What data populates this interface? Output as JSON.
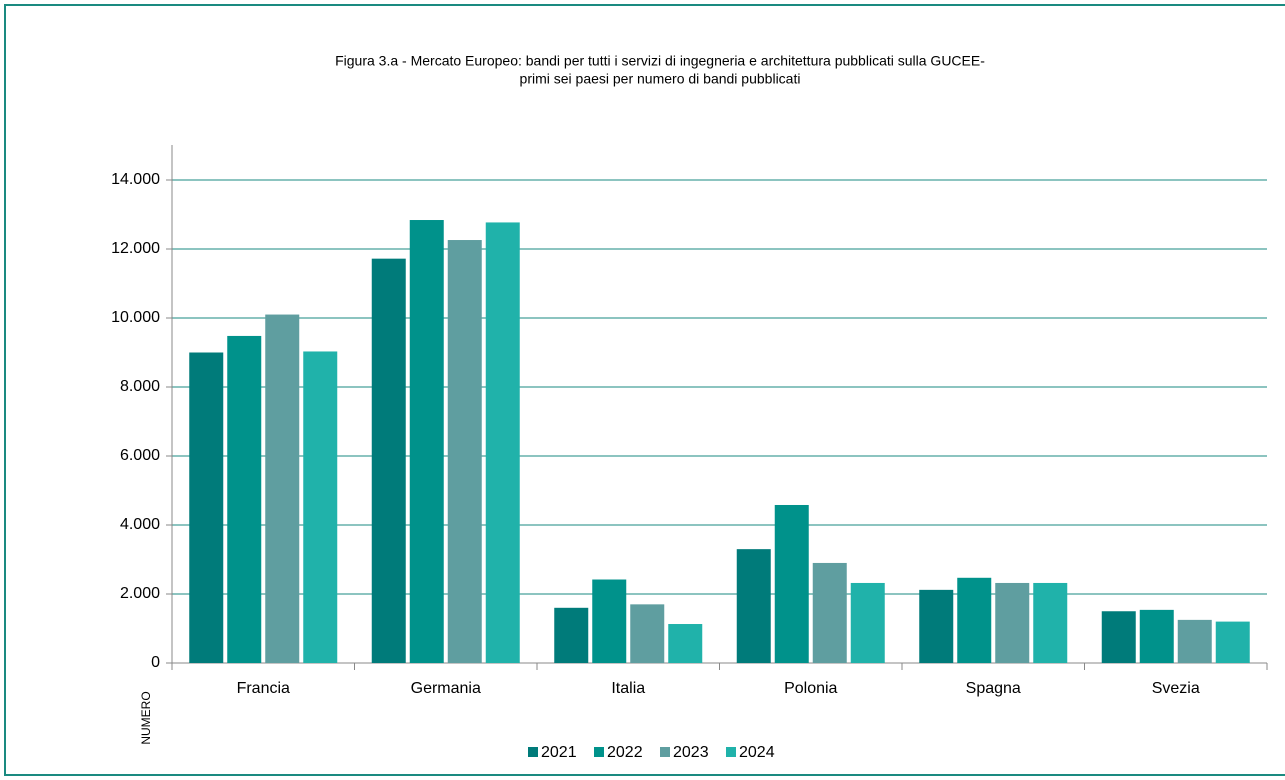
{
  "chart_data": {
    "type": "bar",
    "title": [
      "Figura 3.a - Mercato Europeo: bandi per tutti i servizi di ingegneria e architettura pubblicati sulla GUCEE-",
      "primi sei paesi per numero di bandi pubblicati"
    ],
    "y_label": "NUMERO",
    "categories": [
      "Francia",
      "Germania",
      "Italia",
      "Polonia",
      "Spagna",
      "Svezia"
    ],
    "series": [
      {
        "name": "2021",
        "color": "#007b7a",
        "values": [
          9000,
          11720,
          1600,
          3300,
          2120,
          1500
        ]
      },
      {
        "name": "2022",
        "color": "#00928b",
        "values": [
          9480,
          12840,
          2420,
          4580,
          2470,
          1540
        ]
      },
      {
        "name": "2023",
        "color": "#5f9ea0",
        "values": [
          10100,
          12260,
          1700,
          2900,
          2320,
          1250
        ]
      },
      {
        "name": "2024",
        "color": "#20b2aa",
        "values": [
          9030,
          12770,
          1130,
          2320,
          2320,
          1200
        ]
      }
    ],
    "ylim": [
      0,
      14000
    ],
    "yticks": [
      0,
      {
        "value": 2000,
        "label": "2.000"
      },
      {
        "value": 4000,
        "label": "4.000"
      },
      {
        "value": 6000,
        "label": "6.000"
      },
      {
        "value": 8000,
        "label": "8.000"
      },
      {
        "value": 10000,
        "label": "10.000"
      },
      {
        "value": 12000,
        "label": "12.000"
      },
      {
        "value": 14000,
        "label": "14.000"
      }
    ],
    "grid": true,
    "legend": "bottom"
  }
}
